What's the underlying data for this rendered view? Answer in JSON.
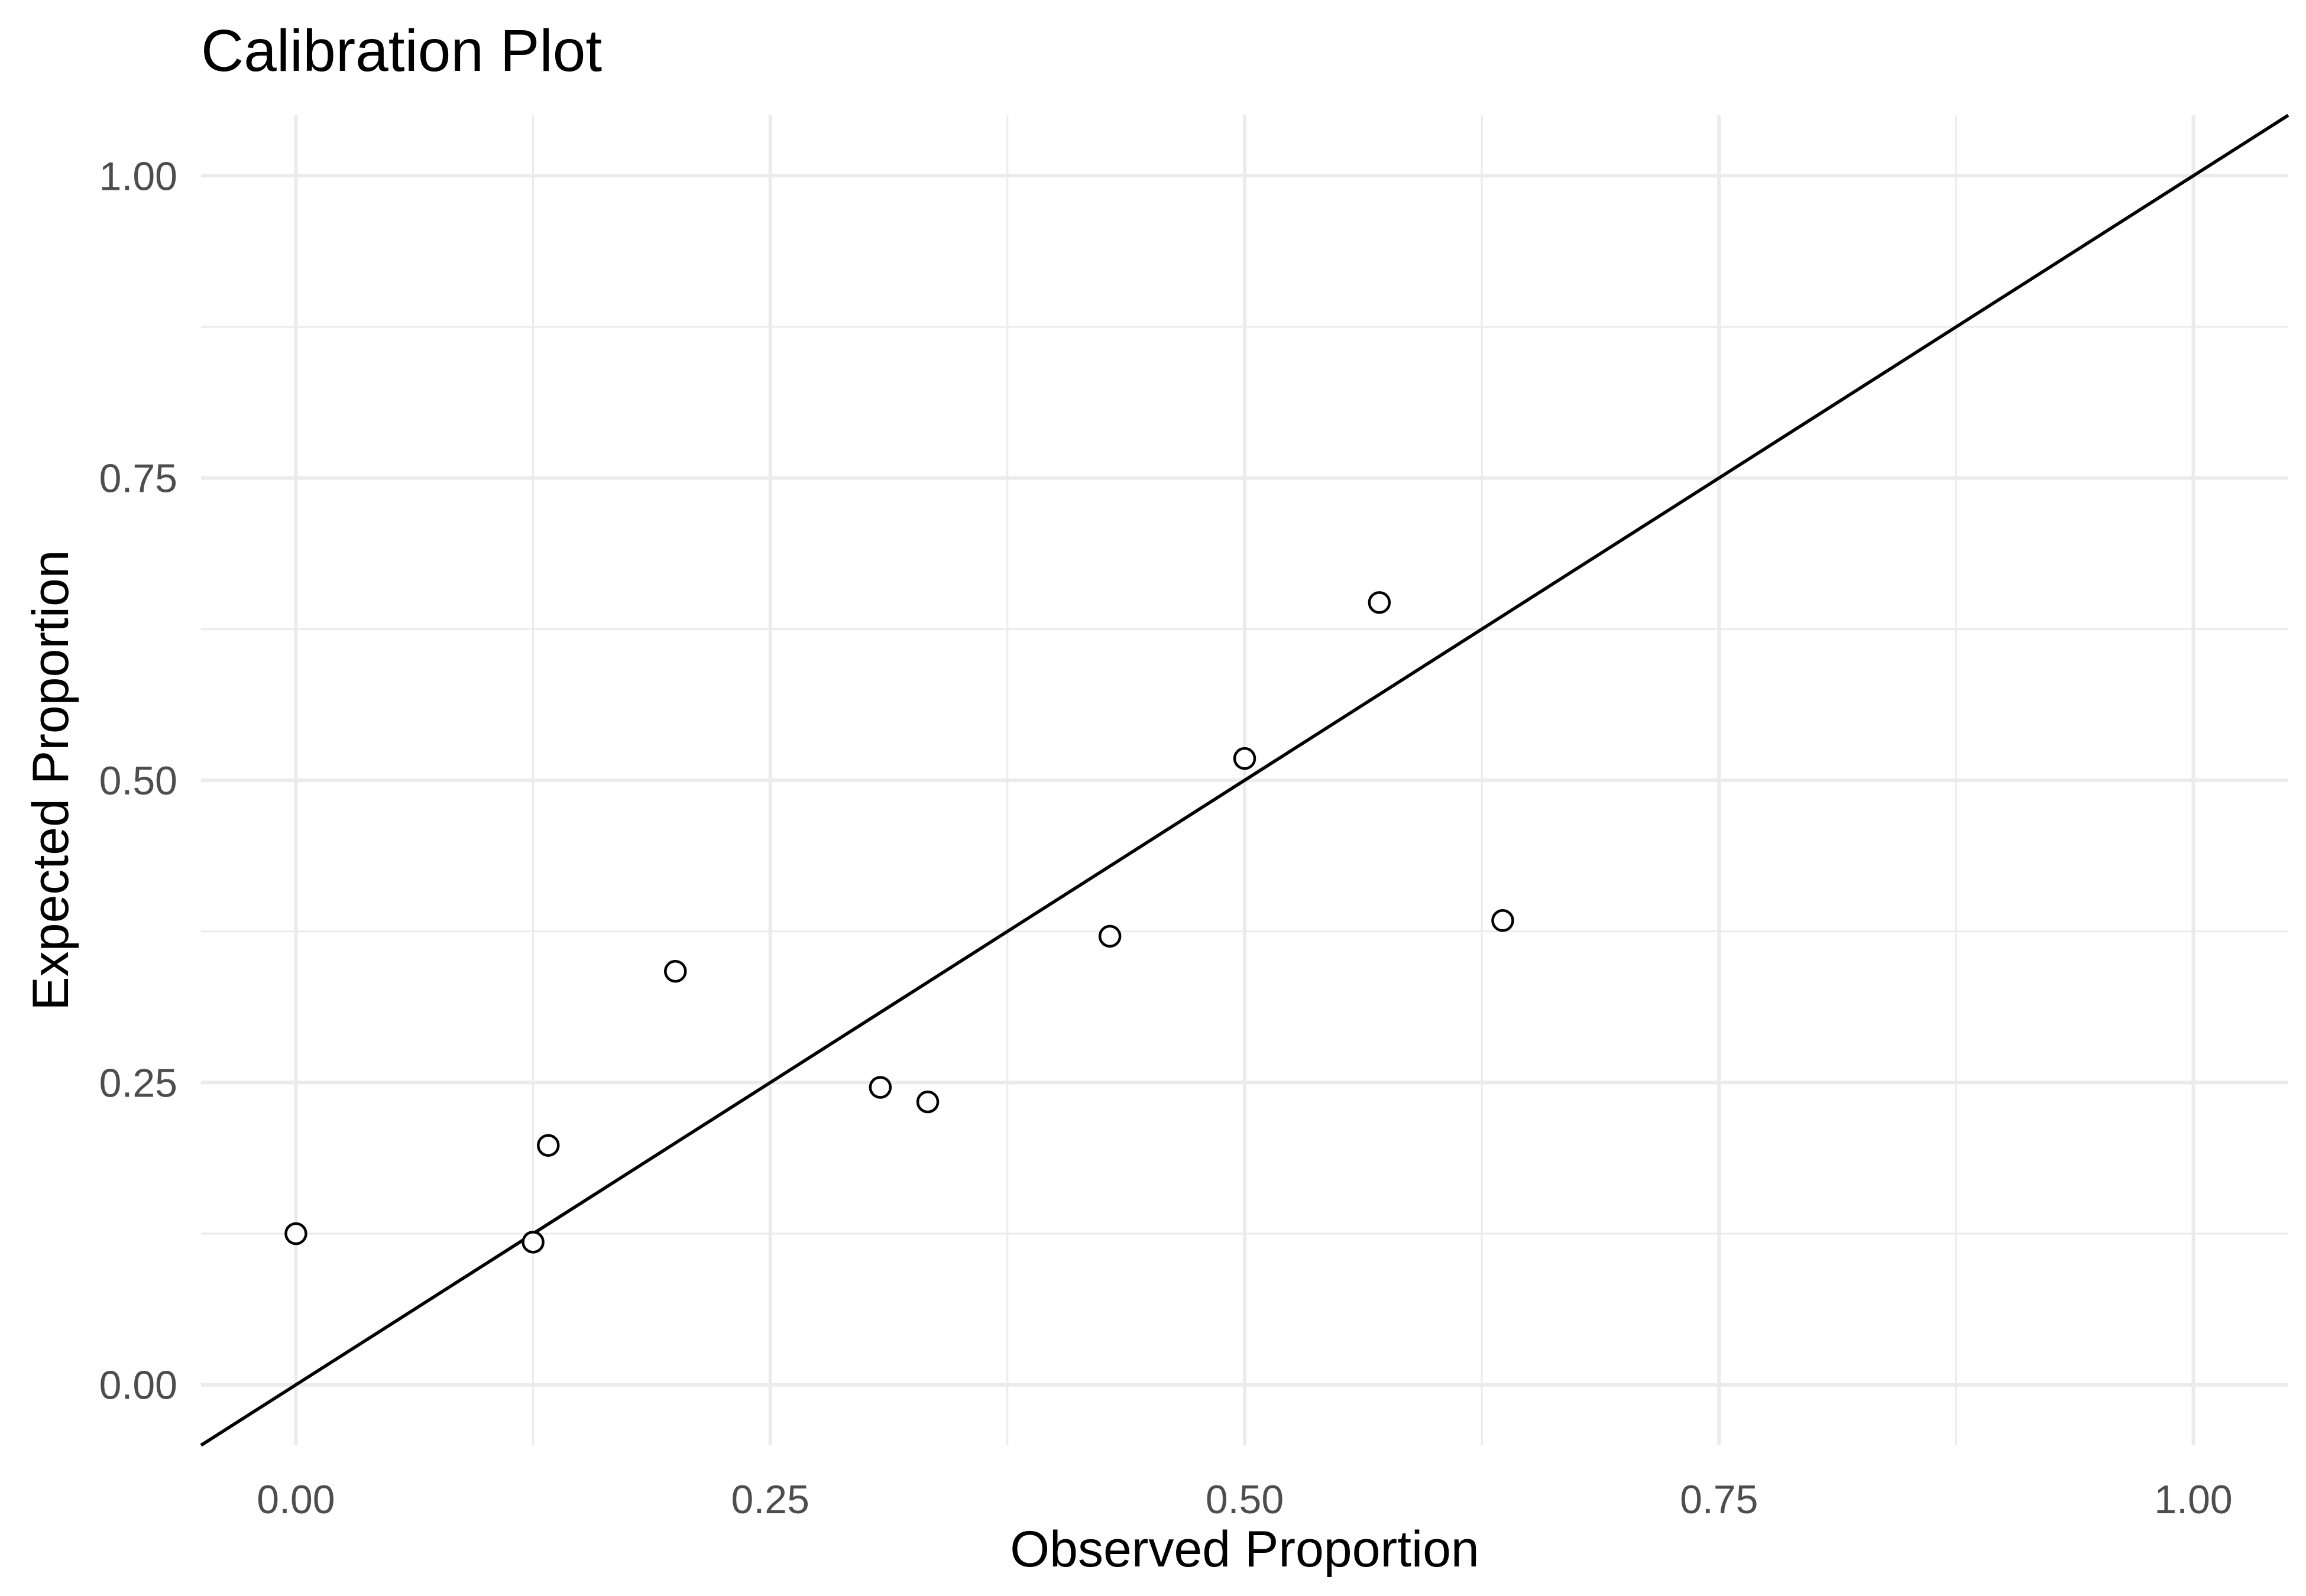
{
  "chart_data": {
    "type": "scatter",
    "title": "Calibration Plot",
    "xlabel": "Observed Proportion",
    "ylabel": "Expected Proportion",
    "xlim": [
      -0.05,
      1.05
    ],
    "ylim": [
      -0.05,
      1.05
    ],
    "x_ticks": [
      0.0,
      0.25,
      0.5,
      0.75,
      1.0
    ],
    "x_tick_labels": [
      "0.00",
      "0.25",
      "0.50",
      "0.75",
      "1.00"
    ],
    "y_ticks": [
      0.0,
      0.25,
      0.5,
      0.75,
      1.0
    ],
    "y_tick_labels": [
      "0.00",
      "0.25",
      "0.50",
      "0.75",
      "1.00"
    ],
    "grid": true,
    "legend": "none",
    "reference_line": {
      "slope": 1,
      "intercept": 0
    },
    "points": [
      {
        "x": 0.0,
        "y": 0.125
      },
      {
        "x": 0.125,
        "y": 0.118
      },
      {
        "x": 0.133,
        "y": 0.198
      },
      {
        "x": 0.2,
        "y": 0.342
      },
      {
        "x": 0.308,
        "y": 0.246
      },
      {
        "x": 0.333,
        "y": 0.234
      },
      {
        "x": 0.429,
        "y": 0.371
      },
      {
        "x": 0.5,
        "y": 0.518
      },
      {
        "x": 0.571,
        "y": 0.647
      },
      {
        "x": 0.636,
        "y": 0.384
      }
    ]
  }
}
